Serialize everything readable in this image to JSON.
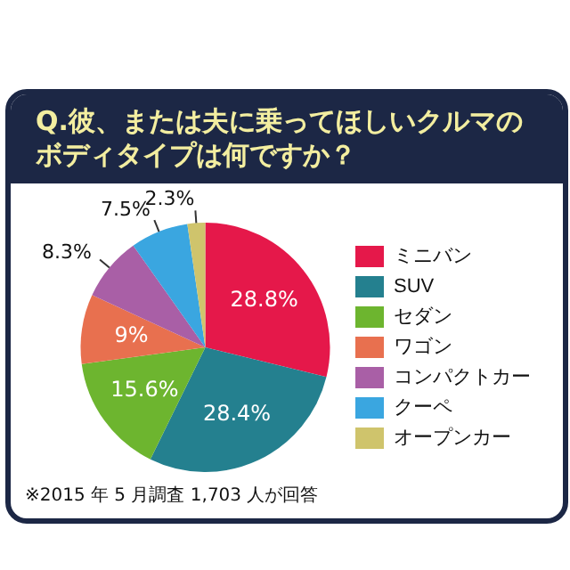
{
  "chart_data": {
    "type": "pie",
    "title": "Q.彼、または夫に乗ってほしいクルマのボディタイプは何ですか？",
    "categories": [
      "ミニバン",
      "SUV",
      "セダン",
      "ワゴン",
      "コンパクトカー",
      "クーペ",
      "オープンカー"
    ],
    "values": [
      28.8,
      28.4,
      15.6,
      9,
      8.3,
      7.5,
      2.3
    ],
    "value_labels": [
      "28.8%",
      "28.4%",
      "15.6%",
      "9%",
      "8.3%",
      "7.5%",
      "2.3%"
    ],
    "colors": [
      "#e5184a",
      "#24808f",
      "#6db52f",
      "#e8704f",
      "#a95fa6",
      "#3aa6e0",
      "#cfc46c"
    ],
    "legend": "right",
    "annotations": [
      "※2015 年 5 月調査 1,703 人が回答"
    ]
  }
}
